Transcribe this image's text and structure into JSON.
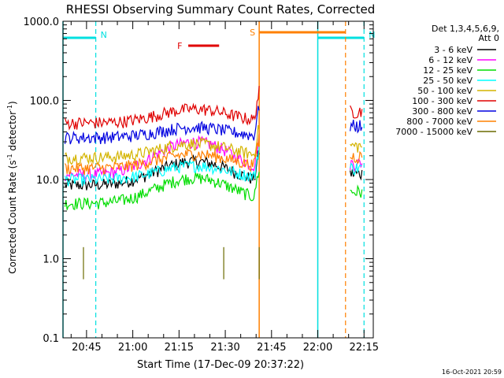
{
  "chart_data": {
    "type": "line",
    "title": "RHESSI Observing Summary Count Rates, Corrected",
    "xlabel": "Start Time (17-Dec-09 20:37:22)",
    "ylabel_main": "Corrected Count Rate (s",
    "ylabel_sup1": "-1",
    "ylabel_mid": " detector",
    "ylabel_sup2": "-1",
    "ylabel_end": ")",
    "x_range": [
      "20:37:22",
      "22:18:00"
    ],
    "y_scale": "log",
    "ylim": [
      0.1,
      1000
    ],
    "x_ticks": [
      "20:45",
      "21:00",
      "21:15",
      "21:30",
      "21:45",
      "22:00",
      "22:15"
    ],
    "y_ticks": [
      "0.1",
      "1.0",
      "10.0",
      "100.0",
      "1000.0"
    ],
    "legend_header": [
      "Det 1,3,4,5,6,9,",
      "Att 0"
    ],
    "legend_position": "right",
    "series": [
      {
        "name": "3 - 6 keV",
        "color": "#000000",
        "base": 8.5,
        "amp": 2.0
      },
      {
        "name": "6 - 12 keV",
        "color": "#ff00ff",
        "base": 11.5,
        "amp": 2.6
      },
      {
        "name": "12 - 25 keV",
        "color": "#00dd00",
        "base": 5.0,
        "amp": 2.1
      },
      {
        "name": "25 - 50 keV",
        "color": "#00ffff",
        "base": 10.0,
        "amp": 1.5
      },
      {
        "name": "50 - 100 keV",
        "color": "#d4b400",
        "base": 19.0,
        "amp": 1.5
      },
      {
        "name": "100 - 300 keV",
        "color": "#e00000",
        "base": 52.0,
        "amp": 1.5
      },
      {
        "name": "300 - 800 keV",
        "color": "#0000e0",
        "base": 34.0,
        "amp": 1.35
      },
      {
        "name": "800 - 7000 keV",
        "color": "#ff8000",
        "base": 14.0,
        "amp": 1.5
      },
      {
        "name": "7000 - 15000 keV",
        "color": "#6b6b00",
        "base": 0.9,
        "amp": 1.0
      }
    ],
    "annotations": [
      {
        "label": "N",
        "color": "#00e0e0",
        "type": "night",
        "start": "20:37:22",
        "end": "20:48:00"
      },
      {
        "label": "N",
        "color": "#00e0e0",
        "type": "night",
        "start": "22:00:00",
        "end": "22:15:00"
      },
      {
        "label": "F",
        "color": "#e00000",
        "type": "flare",
        "start": "21:18:00",
        "end": "21:28:00"
      },
      {
        "label": "S",
        "color": "#ff8000",
        "type": "saa",
        "start": "21:41:00",
        "end": "22:09:00"
      }
    ],
    "timestamp": "16-Oct-2021 20:59"
  }
}
